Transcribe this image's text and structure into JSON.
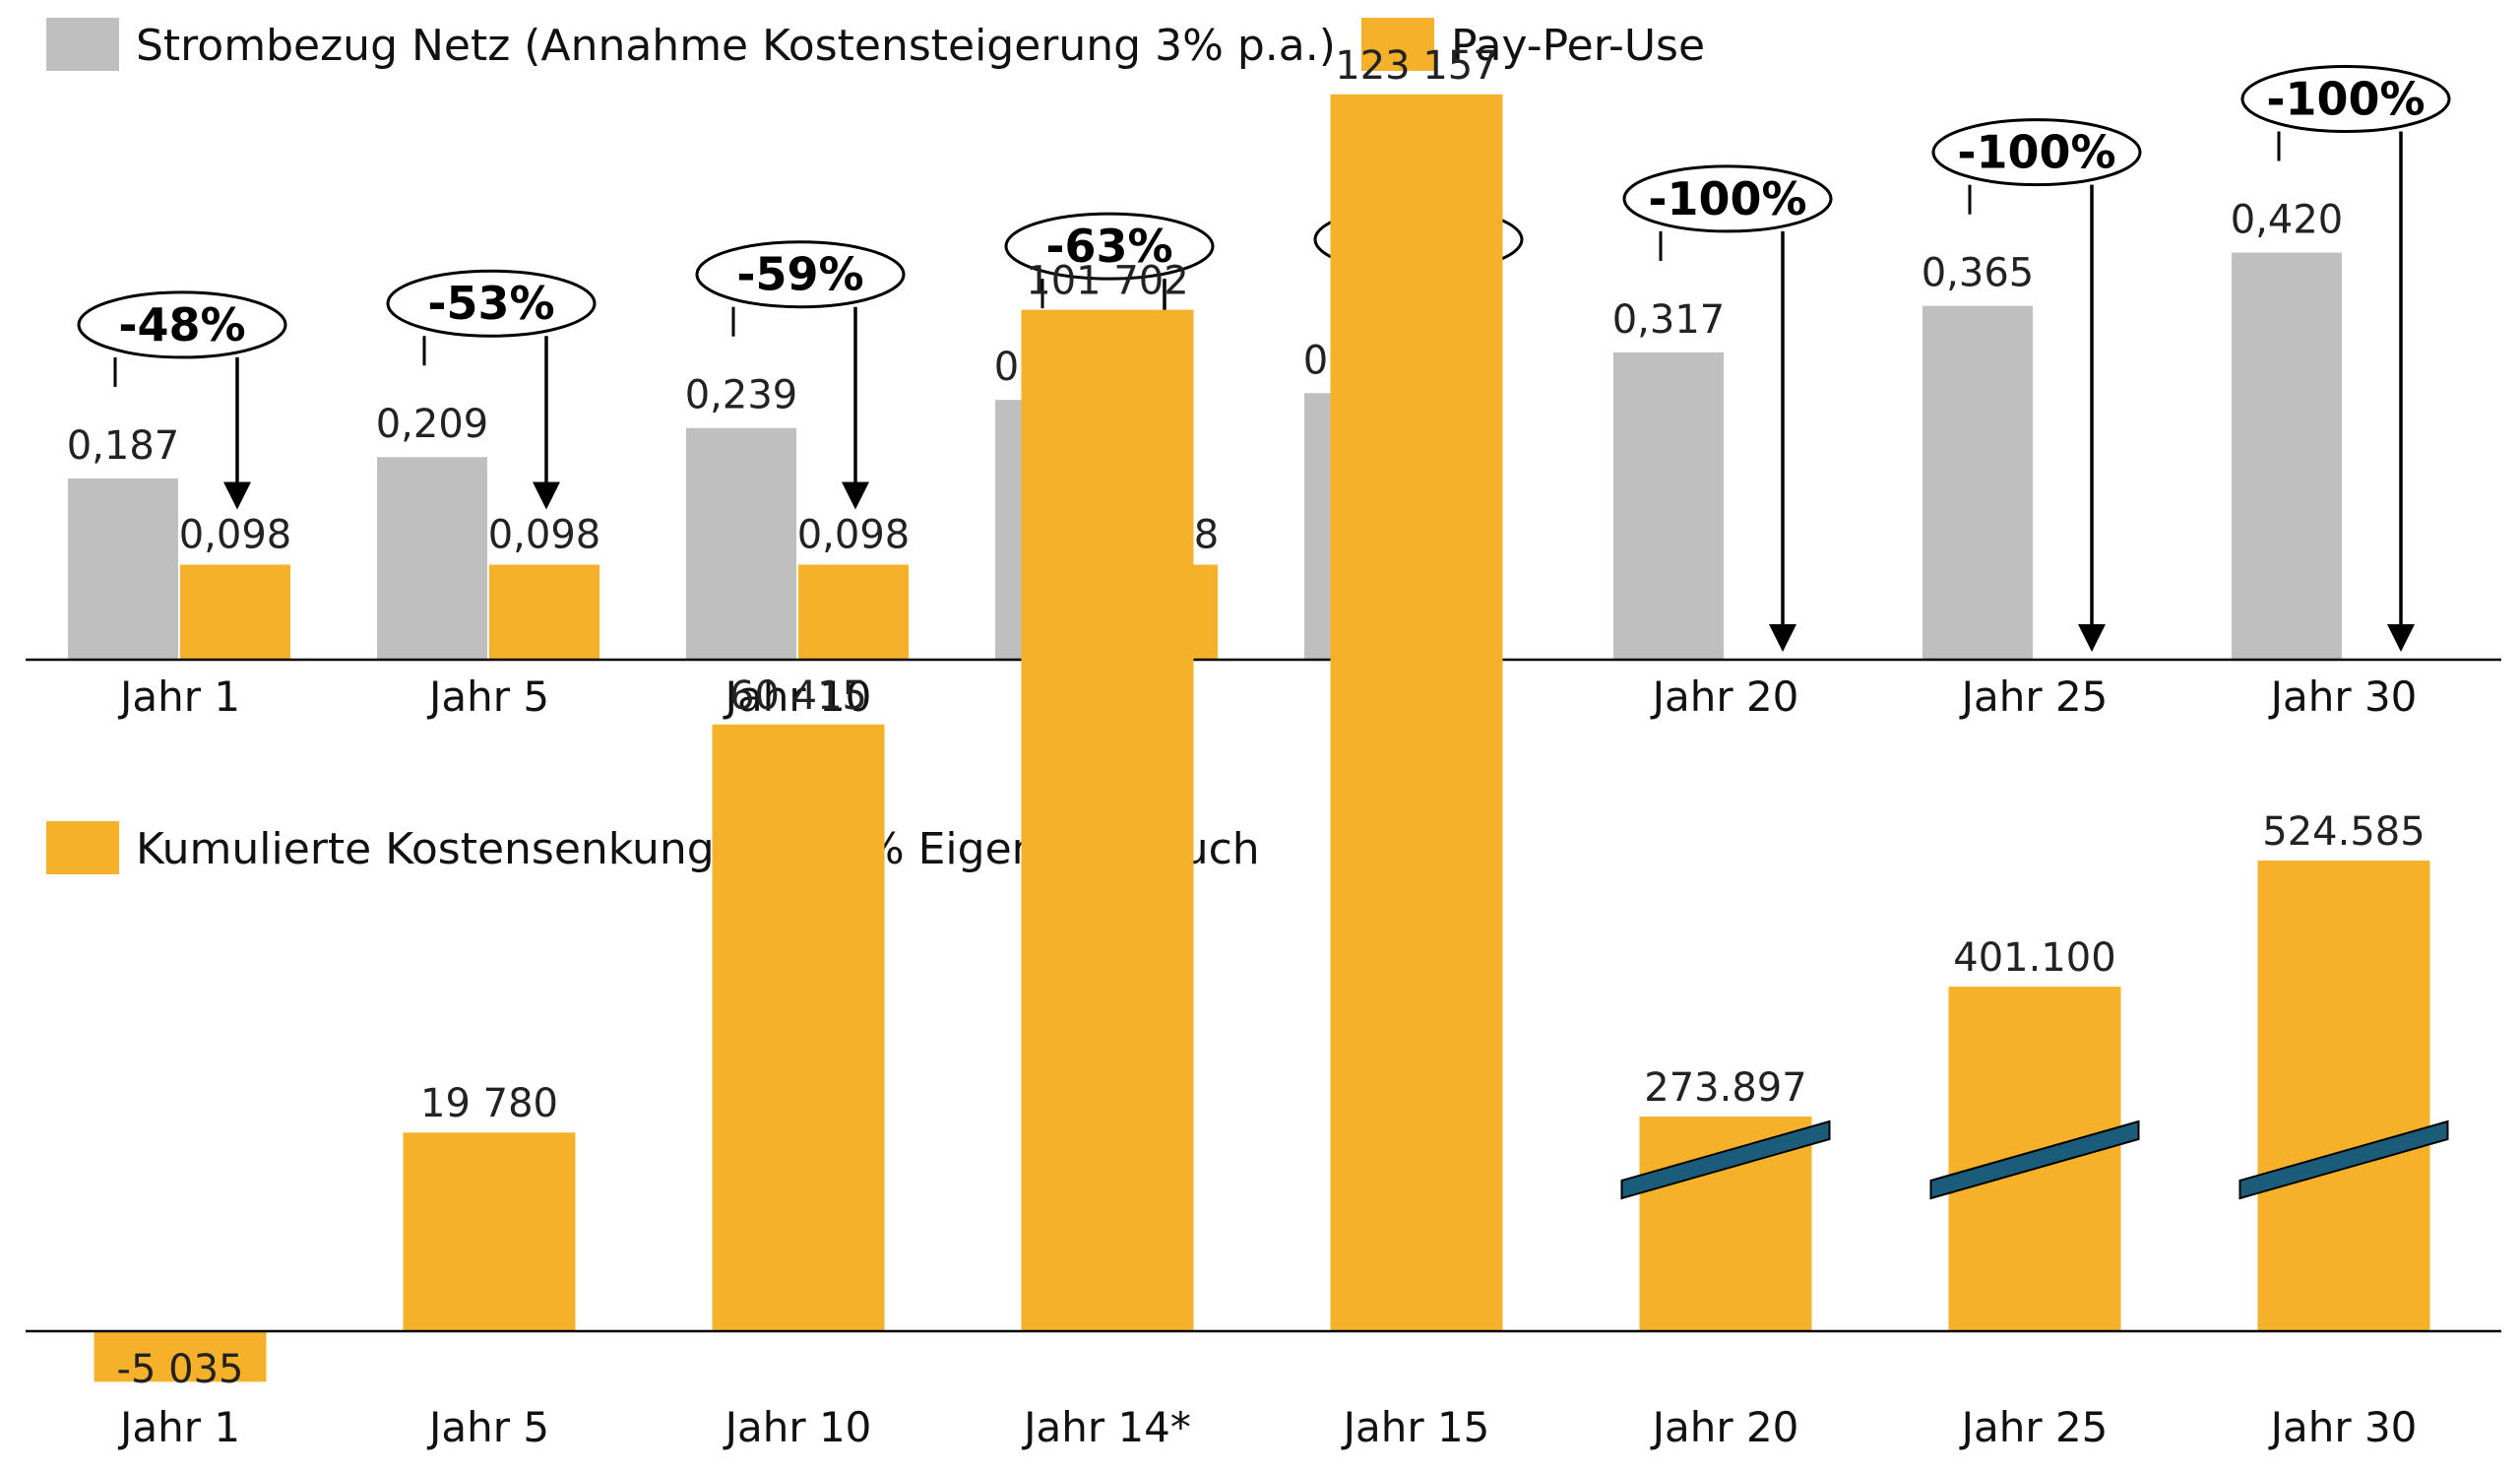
{
  "colors": {
    "grid": "#bfbfbf",
    "ppu": "#f6b12b",
    "break": "#1b5c7a",
    "axis": "#000000"
  },
  "chart_data": [
    {
      "type": "bar",
      "categories": [
        "Jahr 1",
        "Jahr 5",
        "Jahr 10",
        "Jahr 14*",
        "Jahr 15",
        "Jahr 20",
        "Jahr 25",
        "Jahr 30"
      ],
      "series": [
        {
          "name": "Strombezug Netz (Annahme Kostensteigerung 3% p.a.)",
          "values": [
            0.187,
            0.209,
            0.239,
            0.268,
            0.275,
            0.317,
            0.365,
            0.42
          ],
          "labels": [
            "0,187",
            "0,209",
            "0,239",
            "0,268",
            "0,275",
            "0,317",
            "0,365",
            "0,420"
          ]
        },
        {
          "name": "Pay-Per-Use",
          "values": [
            0.098,
            0.098,
            0.098,
            0.098,
            0,
            0,
            0,
            0
          ],
          "labels": [
            "0,098",
            "0,098",
            "0,098",
            "0,098",
            "",
            "",
            "",
            ""
          ]
        }
      ],
      "annotations": [
        "-48%",
        "-53%",
        "-59%",
        "-63%",
        "-100%",
        "-100%",
        "-100%",
        "-100%"
      ],
      "legend": "top-left",
      "xlabel": "",
      "ylabel": ""
    },
    {
      "type": "bar",
      "categories": [
        "Jahr 1",
        "Jahr 5",
        "Jahr 10",
        "Jahr 14*",
        "Jahr 15",
        "Jahr 20",
        "Jahr 25",
        "Jahr 30"
      ],
      "series": [
        {
          "name": "Kumulierte Kostensenkung bei 75% Eigenverbrauch",
          "values": [
            -5035,
            19780,
            60415,
            101702,
            123157,
            273897,
            401100,
            524585
          ],
          "labels": [
            "-5 035",
            "19 780",
            "60 415",
            "101 702",
            "123 157",
            "273.897",
            "401.100",
            "524.585"
          ]
        }
      ],
      "axis_break": [
        "Jahr 20",
        "Jahr 25",
        "Jahr 30"
      ],
      "legend": "top-left",
      "xlabel": "",
      "ylabel": ""
    }
  ]
}
